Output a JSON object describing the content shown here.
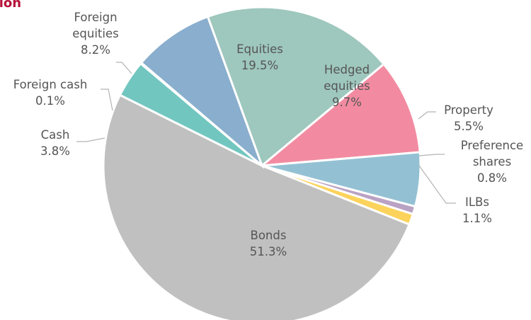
{
  "title": "ation",
  "chart_data": {
    "type": "pie",
    "title": "ation",
    "slices": [
      {
        "label": "Equities",
        "value": 19.5,
        "value_text": "19.5%",
        "color": "#9ec7bd"
      },
      {
        "label": "Hedged equities",
        "value": 9.7,
        "value_text": "9.7%",
        "color": "#f28ba1"
      },
      {
        "label": "Property",
        "value": 5.5,
        "value_text": "5.5%",
        "color": "#93c1d3"
      },
      {
        "label": "Preference shares",
        "value": 0.8,
        "value_text": "0.8%",
        "color": "#b9a2c4"
      },
      {
        "label": "ILBs",
        "value": 1.1,
        "value_text": "1.1%",
        "color": "#fbd35c"
      },
      {
        "label": "Bonds",
        "value": 51.3,
        "value_text": "51.3%",
        "color": "#c0c0c0"
      },
      {
        "label": "Cash",
        "value": 3.8,
        "value_text": "3.8%",
        "color": "#72c6c0"
      },
      {
        "label": "Foreign cash",
        "value": 0.1,
        "value_text": "0.1%",
        "color": "#2f7f78"
      },
      {
        "label": "Foreign equities",
        "value": 8.2,
        "value_text": "8.2%",
        "color": "#8aaecd"
      }
    ]
  }
}
